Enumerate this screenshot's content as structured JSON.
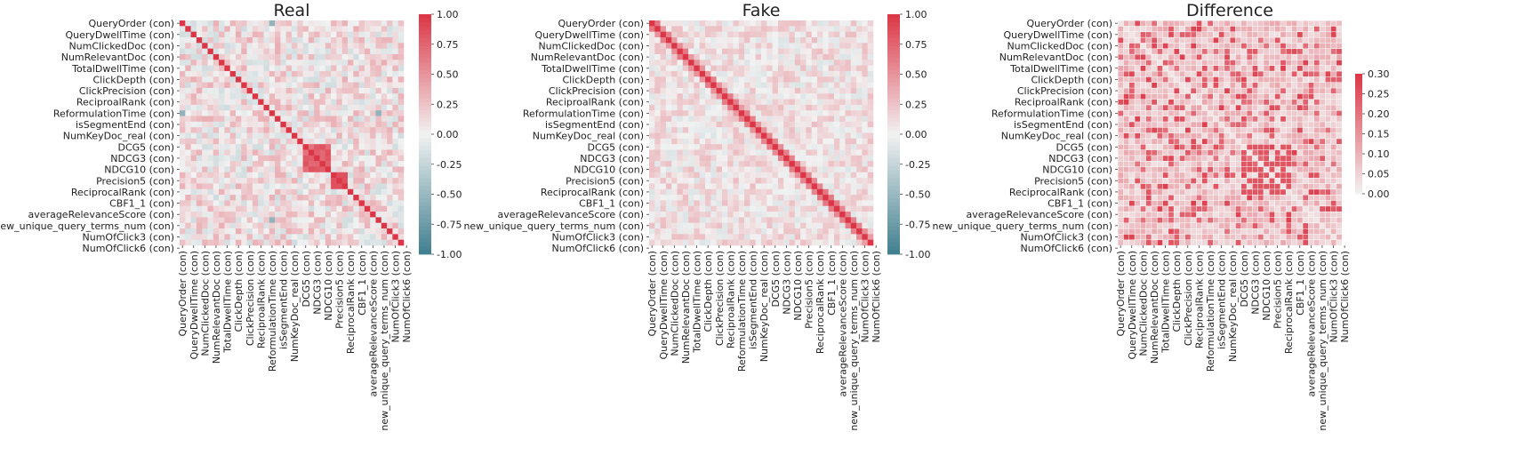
{
  "chart_data": [
    {
      "type": "heatmap",
      "title": "Real",
      "value_range": [
        -1,
        1
      ],
      "colorbar_ticks": [
        "-1.00",
        "-0.75",
        "-0.50",
        "-0.25",
        "0.00",
        "0.25",
        "0.50",
        "0.75",
        "1.00"
      ],
      "colormap": "diverging teal-white-red",
      "colors": {
        "low": "#3f7f8f",
        "mid": "#f2f2f2",
        "high": "#dc3545"
      },
      "y_tick_labels": [
        "QueryOrder (con)",
        "QueryDwellTime (con)",
        "NumClickedDoc (con)",
        "NumRelevantDoc (con)",
        "TotalDwellTime (con)",
        "ClickDepth (con)",
        "ClickPrecision (con)",
        "ReciproalRank (con)",
        "ReformulationTime (con)",
        "isSegmentEnd (con)",
        "NumKeyDoc_real (con)",
        "DCG5 (con)",
        "NDCG3 (con)",
        "NDCG10 (con)",
        "Precision5 (con)",
        "ReciprocalRank (con)",
        "CBF1_1 (con)",
        "averageRelevanceScore (con)",
        "new_unique_query_terms_num (con)",
        "NumOfClick3 (con)",
        "NumOfClick6 (con)"
      ],
      "x_tick_labels": [
        "QueryOrder (con)",
        "QueryDwellTime (con)",
        "NumClickedDoc (con)",
        "NumRelevantDoc (con)",
        "TotalDwellTime (con)",
        "ClickDepth (con)",
        "ClickPrecision (con)",
        "ReciproalRank (con)",
        "ReformulationTime (con)",
        "isSegmentEnd (con)",
        "NumKeyDoc_real (con)",
        "DCG5 (con)",
        "NDCG3 (con)",
        "NDCG10 (con)",
        "Precision5 (con)",
        "ReciprocalRank (con)",
        "CBF1_1 (con)",
        "averageRelevanceScore (con)",
        "new_unique_query_terms_num (con)",
        "NumOfClick3 (con)",
        "NumOfClick6 (con)"
      ]
    },
    {
      "type": "heatmap",
      "title": "Fake",
      "value_range": [
        -1,
        1
      ],
      "colorbar_ticks": [
        "-1.00",
        "-0.75",
        "-0.50",
        "-0.25",
        "0.00",
        "0.25",
        "0.50",
        "0.75",
        "1.00"
      ],
      "colormap": "diverging teal-white-red",
      "colors": {
        "low": "#3f7f8f",
        "mid": "#f2f2f2",
        "high": "#dc3545"
      },
      "y_tick_labels": [
        "QueryOrder (con)",
        "QueryDwellTime (con)",
        "NumClickedDoc (con)",
        "NumRelevantDoc (con)",
        "TotalDwellTime (con)",
        "ClickDepth (con)",
        "ClickPrecision (con)",
        "ReciproalRank (con)",
        "ReformulationTime (con)",
        "isSegmentEnd (con)",
        "NumKeyDoc_real (con)",
        "DCG5 (con)",
        "NDCG3 (con)",
        "NDCG10 (con)",
        "Precision5 (con)",
        "ReciprocalRank (con)",
        "CBF1_1 (con)",
        "averageRelevanceScore (con)",
        "new_unique_query_terms_num (con)",
        "NumOfClick3 (con)",
        "NumOfClick6 (con)"
      ],
      "x_tick_labels": [
        "QueryOrder (con)",
        "QueryDwellTime (con)",
        "NumClickedDoc (con)",
        "NumRelevantDoc (con)",
        "TotalDwellTime (con)",
        "ClickDepth (con)",
        "ClickPrecision (con)",
        "ReciproalRank (con)",
        "ReformulationTime (con)",
        "isSegmentEnd (con)",
        "NumKeyDoc_real (con)",
        "DCG5 (con)",
        "NDCG3 (con)",
        "NDCG10 (con)",
        "Precision5 (con)",
        "ReciprocalRank (con)",
        "CBF1_1 (con)",
        "averageRelevanceScore (con)",
        "new_unique_query_terms_num (con)",
        "NumOfClick3 (con)",
        "NumOfClick6 (con)"
      ]
    },
    {
      "type": "heatmap",
      "title": "Difference",
      "value_range": [
        0,
        0.3
      ],
      "colorbar_ticks": [
        "0.00",
        "0.05",
        "0.10",
        "0.15",
        "0.20",
        "0.25",
        "0.30"
      ],
      "colormap": "sequential white-red",
      "colors": {
        "low": "#f2f2f2",
        "high": "#dc3545",
        "gridline": "#ffffff"
      },
      "y_tick_labels": [
        "QueryOrder (con)",
        "QueryDwellTime (con)",
        "NumClickedDoc (con)",
        "NumRelevantDoc (con)",
        "TotalDwellTime (con)",
        "ClickDepth (con)",
        "ClickPrecision (con)",
        "ReciproalRank (con)",
        "ReformulationTime (con)",
        "isSegmentEnd (con)",
        "NumKeyDoc_real (con)",
        "DCG5 (con)",
        "NDCG3 (con)",
        "NDCG10 (con)",
        "Precision5 (con)",
        "ReciprocalRank (con)",
        "CBF1_1 (con)",
        "averageRelevanceScore (con)",
        "new_unique_query_terms_num (con)",
        "NumOfClick3 (con)",
        "NumOfClick6 (con)"
      ],
      "x_tick_labels": [
        "QueryOrder (con)",
        "QueryDwellTime (con)",
        "NumClickedDoc (con)",
        "NumRelevantDoc (con)",
        "TotalDwellTime (con)",
        "ClickDepth (con)",
        "ClickPrecision (con)",
        "ReciproalRank (con)",
        "ReformulationTime (con)",
        "isSegmentEnd (con)",
        "NumKeyDoc_real (con)",
        "DCG5 (con)",
        "NDCG3 (con)",
        "NDCG10 (con)",
        "Precision5 (con)",
        "ReciprocalRank (con)",
        "CBF1_1 (con)",
        "averageRelevanceScore (con)",
        "new_unique_query_terms_num (con)",
        "NumOfClick3 (con)",
        "NumOfClick6 (con)"
      ]
    }
  ]
}
